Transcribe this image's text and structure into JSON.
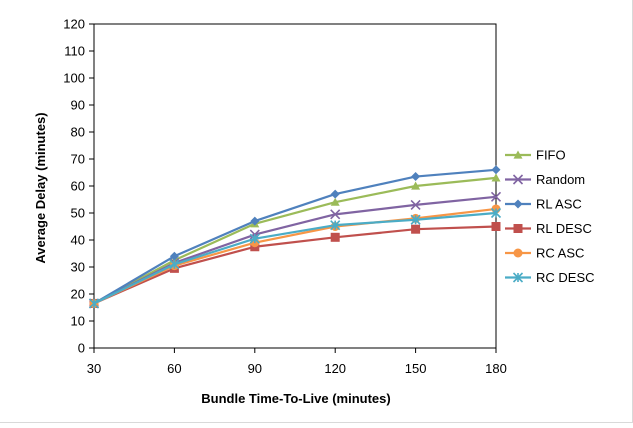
{
  "chart_data": {
    "type": "line",
    "xlabel": "Bundle Time-To-Live (minutes)",
    "ylabel": "Average Delay (minutes)",
    "x": [
      30,
      60,
      90,
      120,
      150,
      180
    ],
    "xlim": [
      30,
      180
    ],
    "ylim": [
      0,
      120
    ],
    "y_ticks": [
      0,
      10,
      20,
      30,
      40,
      50,
      60,
      70,
      80,
      90,
      100,
      110,
      120
    ],
    "x_tick_labels": [
      "30",
      "60",
      "90",
      "120",
      "150",
      "180"
    ],
    "y_tick_labels": [
      "0",
      "10",
      "20",
      "30",
      "40",
      "50",
      "60",
      "70",
      "80",
      "90",
      "100",
      "110",
      "120"
    ],
    "grid": false,
    "legend": "right",
    "series": [
      {
        "name": "FIFO",
        "values": [
          16.5,
          32.5,
          46,
          54,
          60,
          63
        ],
        "color": "#9BBB59",
        "marker": "triangle"
      },
      {
        "name": "Random",
        "values": [
          16.5,
          31.5,
          42,
          49.5,
          53,
          56
        ],
        "color": "#8064A2",
        "marker": "x"
      },
      {
        "name": "RL ASC",
        "values": [
          16.5,
          34,
          47,
          57,
          63.5,
          66
        ],
        "color": "#4F81BD",
        "marker": "diamond"
      },
      {
        "name": "RL DESC",
        "values": [
          16.5,
          29.5,
          37.5,
          41,
          44,
          45
        ],
        "color": "#C0504D",
        "marker": "square"
      },
      {
        "name": "RC ASC",
        "values": [
          16.5,
          30.5,
          39,
          45,
          48,
          51.5
        ],
        "color": "#F79646",
        "marker": "circle"
      },
      {
        "name": "RC DESC",
        "values": [
          16.5,
          31,
          40.5,
          45.5,
          47.5,
          50
        ],
        "color": "#4BACC6",
        "marker": "star"
      }
    ]
  }
}
